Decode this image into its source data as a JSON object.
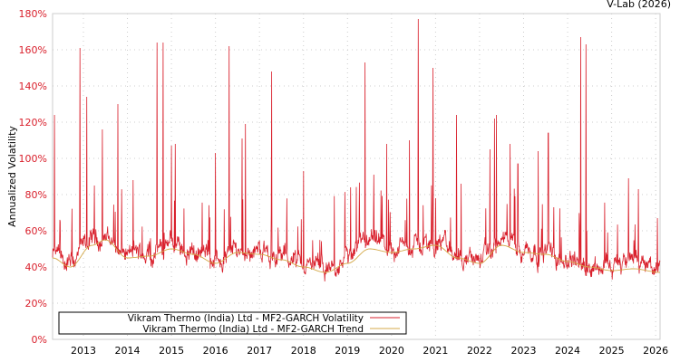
{
  "credit": "V-Lab (2026)",
  "chart_data": {
    "type": "line",
    "title": "",
    "xlabel": "",
    "ylabel": "Annualized Volatility",
    "xlim": [
      2012.3,
      2026.1
    ],
    "ylim": [
      0,
      180
    ],
    "grid": true,
    "y_ticks": [
      "0%",
      "20%",
      "40%",
      "60%",
      "80%",
      "100%",
      "120%",
      "140%",
      "160%",
      "180%"
    ],
    "x_ticks": [
      "2013",
      "2014",
      "2015",
      "2016",
      "2017",
      "2018",
      "2019",
      "2020",
      "2021",
      "2022",
      "2023",
      "2024",
      "2025",
      "2026"
    ],
    "legend_position": "bottom-left",
    "colors": {
      "volatility": "#d9202c",
      "trend": "#d4a848",
      "axis_text": "#d9202c",
      "grid": "#cccccc"
    },
    "series": [
      {
        "name": "Vikram Thermo (India) Ltd - MF2-GARCH Volatility",
        "note": "spike peaks [year, %]",
        "spikes": [
          [
            2012.34,
            124
          ],
          [
            2012.92,
            161
          ],
          [
            2013.08,
            134
          ],
          [
            2013.25,
            85
          ],
          [
            2013.43,
            116
          ],
          [
            2013.78,
            130
          ],
          [
            2014.13,
            88
          ],
          [
            2014.67,
            164
          ],
          [
            2014.81,
            164
          ],
          [
            2015.0,
            107
          ],
          [
            2015.09,
            108
          ],
          [
            2016.0,
            103
          ],
          [
            2016.31,
            162
          ],
          [
            2016.6,
            111
          ],
          [
            2016.68,
            119
          ],
          [
            2017.28,
            148
          ],
          [
            2018.0,
            93
          ],
          [
            2019.07,
            84
          ],
          [
            2019.4,
            153
          ],
          [
            2019.6,
            91
          ],
          [
            2019.89,
            108
          ],
          [
            2020.41,
            110
          ],
          [
            2020.61,
            177
          ],
          [
            2020.94,
            150
          ],
          [
            2021.48,
            124
          ],
          [
            2021.58,
            86
          ],
          [
            2022.24,
            105
          ],
          [
            2022.34,
            122
          ],
          [
            2022.38,
            124
          ],
          [
            2022.69,
            108
          ],
          [
            2022.87,
            97
          ],
          [
            2023.33,
            104
          ],
          [
            2023.56,
            114
          ],
          [
            2024.3,
            167
          ],
          [
            2024.42,
            163
          ],
          [
            2025.38,
            89
          ],
          [
            2025.61,
            83
          ],
          [
            2026.04,
            67
          ]
        ]
      },
      {
        "name": "Vikram Thermo (India) Ltd - MF2-GARCH Trend",
        "points": [
          [
            2012.3,
            45
          ],
          [
            2012.7,
            40
          ],
          [
            2013.2,
            52
          ],
          [
            2013.5,
            55
          ],
          [
            2014.0,
            45
          ],
          [
            2014.5,
            46
          ],
          [
            2015.0,
            50
          ],
          [
            2015.5,
            47
          ],
          [
            2016.0,
            42
          ],
          [
            2016.5,
            48
          ],
          [
            2017.0,
            47
          ],
          [
            2017.5,
            44
          ],
          [
            2018.0,
            40
          ],
          [
            2018.5,
            37
          ],
          [
            2019.0,
            42
          ],
          [
            2019.5,
            50
          ],
          [
            2020.0,
            48
          ],
          [
            2020.5,
            50
          ],
          [
            2021.0,
            52
          ],
          [
            2021.5,
            45
          ],
          [
            2022.0,
            42
          ],
          [
            2022.5,
            52
          ],
          [
            2023.0,
            48
          ],
          [
            2023.5,
            47
          ],
          [
            2024.0,
            43
          ],
          [
            2024.5,
            40
          ],
          [
            2025.0,
            38
          ],
          [
            2025.5,
            39
          ],
          [
            2026.1,
            37
          ]
        ]
      }
    ]
  }
}
